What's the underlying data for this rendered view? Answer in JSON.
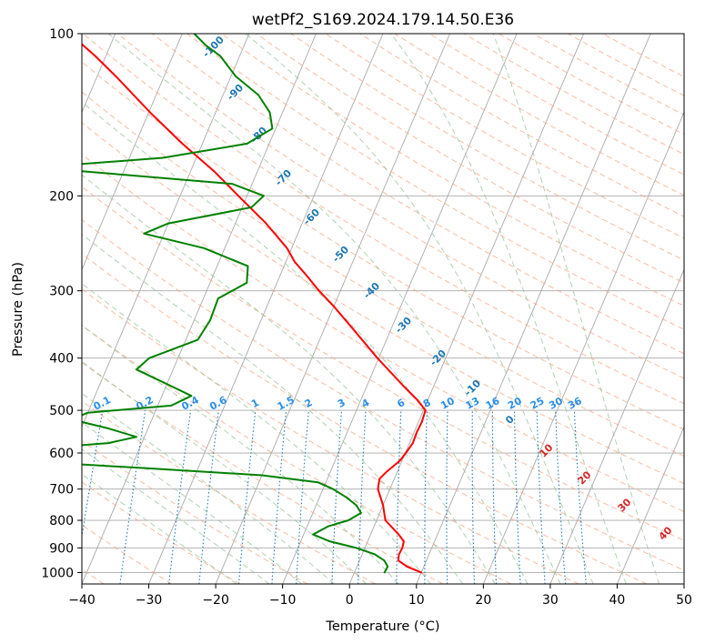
{
  "chart_data": {
    "type": "line",
    "chart_kind": "skew-t log-p diagram",
    "title": "wetPf2_S169.2024.179.14.50.E36",
    "xlabel": "Temperature (°C)",
    "ylabel": "Pressure (hPa)",
    "xlim": [
      -40,
      50
    ],
    "ylim": [
      1050,
      100
    ],
    "y_scale": "log",
    "grid": true,
    "x_ticks": [
      -40,
      -30,
      -20,
      -10,
      0,
      10,
      20,
      30,
      40,
      50
    ],
    "y_ticks": [
      100,
      200,
      300,
      400,
      500,
      600,
      700,
      800,
      900,
      1000
    ],
    "x_tick_labels": [
      "−40",
      "−30",
      "−20",
      "−10",
      "0",
      "10",
      "20",
      "30",
      "40",
      "50"
    ],
    "y_tick_labels": [
      "100",
      "200",
      "300",
      "400",
      "500",
      "600",
      "700",
      "800",
      "900",
      "1000"
    ],
    "series": [
      {
        "name": "",
        "role": "temperature",
        "color": "#ff0000",
        "points": [
          [
            1000,
            10.0
          ],
          [
            975,
            7.5
          ],
          [
            950,
            5.8
          ],
          [
            925,
            5.5
          ],
          [
            900,
            5.6
          ],
          [
            875,
            5.4
          ],
          [
            850,
            4.2
          ],
          [
            800,
            1.3
          ],
          [
            750,
            0.0
          ],
          [
            700,
            -1.8
          ],
          [
            670,
            -2.2
          ],
          [
            650,
            -1.6
          ],
          [
            620,
            -0.3
          ],
          [
            600,
            0.1
          ],
          [
            575,
            0.5
          ],
          [
            550,
            0.4
          ],
          [
            525,
            0.5
          ],
          [
            500,
            0.3
          ],
          [
            480,
            -1.4
          ],
          [
            450,
            -4.6
          ],
          [
            400,
            -10.2
          ],
          [
            350,
            -16.1
          ],
          [
            320,
            -20.1
          ],
          [
            300,
            -23.2
          ],
          [
            280,
            -26.2
          ],
          [
            265,
            -28.7
          ],
          [
            250,
            -30.7
          ],
          [
            225,
            -35.4
          ],
          [
            200,
            -41.3
          ],
          [
            180,
            -46.5
          ],
          [
            160,
            -53.0
          ],
          [
            140,
            -59.8
          ],
          [
            120,
            -67.2
          ],
          [
            110,
            -71.6
          ],
          [
            100,
            -76.8
          ]
        ]
      },
      {
        "name": "",
        "role": "dewpoint",
        "color": "#008000",
        "points": [
          [
            1000,
            4.5
          ],
          [
            975,
            4.6
          ],
          [
            950,
            3.7
          ],
          [
            925,
            1.9
          ],
          [
            900,
            -1.3
          ],
          [
            875,
            -5.7
          ],
          [
            850,
            -8.6
          ],
          [
            820,
            -6.8
          ],
          [
            800,
            -4.2
          ],
          [
            775,
            -2.8
          ],
          [
            750,
            -4.0
          ],
          [
            725,
            -6.0
          ],
          [
            700,
            -8.5
          ],
          [
            680,
            -11.2
          ],
          [
            660,
            -20.0
          ],
          [
            640,
            -38.0
          ],
          [
            620,
            -58.0
          ],
          [
            600,
            -62.6
          ],
          [
            590,
            -56.0
          ],
          [
            575,
            -45.0
          ],
          [
            560,
            -41.2
          ],
          [
            540,
            -46.0
          ],
          [
            520,
            -52.0
          ],
          [
            505,
            -50.0
          ],
          [
            490,
            -38.0
          ],
          [
            470,
            -35.6
          ],
          [
            450,
            -39.4
          ],
          [
            420,
            -45.5
          ],
          [
            400,
            -44.3
          ],
          [
            370,
            -38.2
          ],
          [
            340,
            -37.6
          ],
          [
            310,
            -37.8
          ],
          [
            290,
            -34.5
          ],
          [
            270,
            -35.4
          ],
          [
            250,
            -43.1
          ],
          [
            235,
            -53.0
          ],
          [
            225,
            -50.0
          ],
          [
            210,
            -38.6
          ],
          [
            200,
            -37.5
          ],
          [
            190,
            -43.0
          ],
          [
            180,
            -66.3
          ],
          [
            175,
            -68.0
          ],
          [
            170,
            -55.0
          ],
          [
            160,
            -43.3
          ],
          [
            150,
            -40.5
          ],
          [
            140,
            -41.9
          ],
          [
            130,
            -44.7
          ],
          [
            120,
            -49.3
          ],
          [
            110,
            -52.9
          ],
          [
            105,
            -55.8
          ],
          [
            100,
            -58.2
          ]
        ]
      }
    ],
    "dry_adiabat_labels": [
      "-100",
      "-90",
      "-80",
      "-70",
      "-60",
      "-50",
      "-40",
      "-30",
      "-20",
      "-10",
      "0"
    ],
    "moist_adiabat_labels": [
      "10",
      "20",
      "30",
      "40"
    ],
    "mixing_ratio_labels": [
      "0.1",
      "0.2",
      "0.4",
      "0.6",
      "1",
      "1.5",
      "2",
      "3",
      "4",
      "6",
      "8",
      "10",
      "13",
      "16",
      "20",
      "25",
      "30",
      "36"
    ],
    "background": {
      "isotherm_color": "#aaaaaa",
      "dry_adiabat_color": "#f4a582",
      "moist_adiabat_color": "#8fbf8f",
      "mixing_ratio_color": "#1f77b4",
      "dry_label_color": "#1f77b4",
      "moist_label_color": "#d62728",
      "mixing_label_color": "#2b8ee8"
    }
  }
}
